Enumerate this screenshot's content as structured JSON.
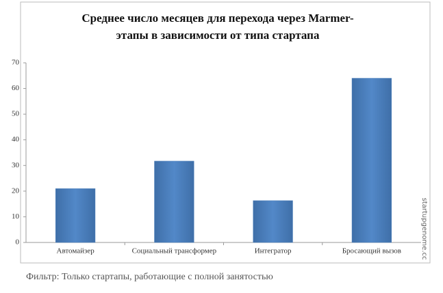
{
  "chart_data": {
    "type": "bar",
    "title": [
      "Среднее число месяцев для перехода через Marmer-",
      "этапы в зависимости от типа стартапа"
    ],
    "categories": [
      "Автомайзер",
      "Социальный трансформер",
      "Интегратор",
      "Бросающий вызов"
    ],
    "values": [
      21,
      31.7,
      16.3,
      64
    ],
    "color": "#4a7ebb",
    "ylim": [
      0,
      70
    ],
    "yticks": [
      0,
      10,
      20,
      30,
      40,
      50,
      60,
      70
    ],
    "grid": false,
    "watermark": "startupgenome.cc",
    "footnote": "Фильтр: Только стартапы, работающие с полной занятостью"
  }
}
